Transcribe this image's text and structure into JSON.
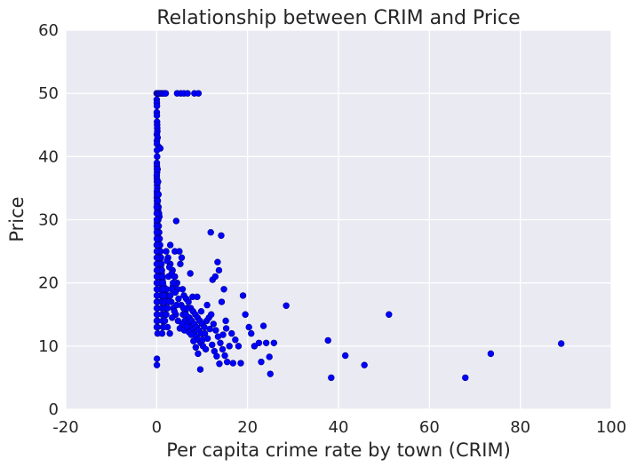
{
  "chart_data": {
    "type": "scatter",
    "title": "Relationship between CRIM and Price",
    "xlabel": "Per capita crime rate by town (CRIM)",
    "ylabel": "Price",
    "xlim": [
      -20,
      100
    ],
    "ylim": [
      0,
      60
    ],
    "xticks": [
      "-20",
      "0",
      "20",
      "40",
      "60",
      "80",
      "100"
    ],
    "yticks": [
      "0",
      "10",
      "20",
      "30",
      "40",
      "50",
      "60"
    ],
    "grid": true,
    "legend": "none",
    "colors": {
      "point": "#0000ff",
      "plot_background": "#eaeaf2",
      "grid": "#ffffff"
    },
    "points": [
      [
        0.01,
        50
      ],
      [
        0.03,
        50
      ],
      [
        0.05,
        50
      ],
      [
        0.1,
        50
      ],
      [
        0.2,
        50
      ],
      [
        0.3,
        50
      ],
      [
        0.5,
        50
      ],
      [
        0.7,
        50
      ],
      [
        1.0,
        50
      ],
      [
        1.3,
        50
      ],
      [
        1.6,
        50
      ],
      [
        2.0,
        50
      ],
      [
        4.5,
        50
      ],
      [
        5.3,
        50
      ],
      [
        6.0,
        50
      ],
      [
        6.8,
        50
      ],
      [
        8.3,
        50
      ],
      [
        9.2,
        50
      ],
      [
        0.02,
        49
      ],
      [
        0.04,
        48.5
      ],
      [
        0.06,
        48
      ],
      [
        0.03,
        47
      ],
      [
        0.05,
        46.5
      ],
      [
        0.08,
        45.5
      ],
      [
        0.1,
        45
      ],
      [
        0.12,
        44.5
      ],
      [
        0.15,
        44
      ],
      [
        0.04,
        43.5
      ],
      [
        0.2,
        43
      ],
      [
        0.05,
        42.5
      ],
      [
        0.06,
        42
      ],
      [
        0.5,
        41.5
      ],
      [
        0.8,
        41.3
      ],
      [
        0.07,
        41
      ],
      [
        0.1,
        40
      ],
      [
        0.04,
        39
      ],
      [
        0.05,
        38.5
      ],
      [
        0.06,
        38
      ],
      [
        0.08,
        37.5
      ],
      [
        0.03,
        37
      ],
      [
        0.05,
        36.5
      ],
      [
        0.07,
        36
      ],
      [
        0.1,
        35.5
      ],
      [
        0.12,
        35
      ],
      [
        0.05,
        34.5
      ],
      [
        0.06,
        34
      ],
      [
        0.04,
        33.5
      ],
      [
        0.08,
        33
      ],
      [
        0.1,
        32.5
      ],
      [
        0.12,
        32
      ],
      [
        0.15,
        31.5
      ],
      [
        0.2,
        31
      ],
      [
        0.3,
        31.5
      ],
      [
        0.4,
        32
      ],
      [
        0.5,
        31
      ],
      [
        0.6,
        30.5
      ],
      [
        0.05,
        30
      ],
      [
        0.08,
        29.5
      ],
      [
        0.1,
        29
      ],
      [
        0.12,
        28.5
      ],
      [
        0.15,
        28
      ],
      [
        0.2,
        27.5
      ],
      [
        0.25,
        27
      ],
      [
        0.3,
        26.5
      ],
      [
        0.35,
        26
      ],
      [
        0.4,
        25.5
      ],
      [
        0.45,
        25
      ],
      [
        0.5,
        24.5
      ],
      [
        0.6,
        24
      ],
      [
        0.7,
        23.5
      ],
      [
        0.8,
        23
      ],
      [
        0.9,
        22.5
      ],
      [
        1.0,
        22
      ],
      [
        1.1,
        21.5
      ],
      [
        1.2,
        21
      ],
      [
        1.3,
        20.5
      ],
      [
        1.4,
        20
      ],
      [
        1.5,
        19.5
      ],
      [
        1.6,
        19
      ],
      [
        1.7,
        18.5
      ],
      [
        1.8,
        18
      ],
      [
        1.9,
        17.5
      ],
      [
        2.0,
        17
      ],
      [
        0.05,
        26
      ],
      [
        0.06,
        25
      ],
      [
        0.07,
        24
      ],
      [
        0.08,
        23
      ],
      [
        0.09,
        22
      ],
      [
        0.1,
        21
      ],
      [
        0.11,
        20
      ],
      [
        0.12,
        19
      ],
      [
        0.13,
        18
      ],
      [
        0.14,
        17
      ],
      [
        0.15,
        16
      ],
      [
        0.16,
        15
      ],
      [
        0.17,
        14
      ],
      [
        0.18,
        13
      ],
      [
        0.2,
        12
      ],
      [
        0.3,
        24
      ],
      [
        0.4,
        23
      ],
      [
        0.5,
        22
      ],
      [
        0.6,
        21
      ],
      [
        0.7,
        20
      ],
      [
        0.8,
        19
      ],
      [
        0.9,
        18
      ],
      [
        1.0,
        17
      ],
      [
        1.1,
        16
      ],
      [
        1.2,
        15
      ],
      [
        1.3,
        14
      ],
      [
        1.4,
        13
      ],
      [
        0.05,
        7
      ],
      [
        0.06,
        8
      ],
      [
        2.5,
        24
      ],
      [
        3.0,
        23
      ],
      [
        3.5,
        22
      ],
      [
        4.0,
        21
      ],
      [
        4.5,
        20
      ],
      [
        2.2,
        19
      ],
      [
        2.7,
        18
      ],
      [
        3.2,
        17
      ],
      [
        3.7,
        16
      ],
      [
        4.2,
        15
      ],
      [
        4.7,
        14
      ],
      [
        2.4,
        13
      ],
      [
        2.9,
        12
      ],
      [
        3.4,
        14.5
      ],
      [
        3.9,
        15.5
      ],
      [
        4.4,
        16.5
      ],
      [
        4.3,
        29.8
      ],
      [
        4.0,
        25
      ],
      [
        5.0,
        25
      ],
      [
        3.0,
        26
      ],
      [
        5.5,
        24
      ],
      [
        5.2,
        23
      ],
      [
        2.6,
        21
      ],
      [
        3.8,
        20
      ],
      [
        4.6,
        19
      ],
      [
        5.7,
        19
      ],
      [
        6.0,
        18
      ],
      [
        6.5,
        17.5
      ],
      [
        7.0,
        17
      ],
      [
        7.5,
        16
      ],
      [
        8.0,
        15.5
      ],
      [
        8.5,
        15
      ],
      [
        9.0,
        14.5
      ],
      [
        9.5,
        14
      ],
      [
        10.0,
        13.5
      ],
      [
        10.5,
        13
      ],
      [
        6.2,
        14
      ],
      [
        6.8,
        13.5
      ],
      [
        7.3,
        13
      ],
      [
        7.8,
        12.5
      ],
      [
        8.2,
        12
      ],
      [
        8.7,
        11.5
      ],
      [
        9.2,
        11
      ],
      [
        9.7,
        10.5
      ],
      [
        10.2,
        10
      ],
      [
        10.8,
        9.5
      ],
      [
        5.8,
        15
      ],
      [
        6.3,
        15.5
      ],
      [
        6.7,
        16
      ],
      [
        7.2,
        14.5
      ],
      [
        7.7,
        14
      ],
      [
        8.3,
        13.5
      ],
      [
        8.8,
        13
      ],
      [
        9.3,
        12.5
      ],
      [
        9.8,
        12
      ],
      [
        11.0,
        14
      ],
      [
        11.5,
        14.5
      ],
      [
        12.0,
        15
      ],
      [
        12.5,
        13.5
      ],
      [
        13.0,
        12.5
      ],
      [
        13.5,
        11.5
      ],
      [
        14.0,
        10.5
      ],
      [
        14.5,
        9.5
      ],
      [
        15.0,
        8.5
      ],
      [
        15.5,
        7.5
      ],
      [
        16.0,
        10
      ],
      [
        7.9,
        17.8
      ],
      [
        8.9,
        17.8
      ],
      [
        7.4,
        21.5
      ],
      [
        9.8,
        15.5
      ],
      [
        11.1,
        16.5
      ],
      [
        12.3,
        20.5
      ],
      [
        12.9,
        21
      ],
      [
        13.4,
        23.3
      ],
      [
        13.7,
        22
      ],
      [
        14.2,
        27.5
      ],
      [
        14.8,
        19
      ],
      [
        14.3,
        17
      ],
      [
        15.2,
        14
      ],
      [
        16.5,
        12
      ],
      [
        17.3,
        11
      ],
      [
        18.0,
        10
      ],
      [
        18.5,
        7.3
      ],
      [
        16.8,
        7.3
      ],
      [
        19.0,
        18
      ],
      [
        19.5,
        15
      ],
      [
        20.3,
        13
      ],
      [
        20.8,
        12
      ],
      [
        21.5,
        10
      ],
      [
        22.5,
        10.5
      ],
      [
        23.0,
        7.5
      ],
      [
        23.5,
        13.2
      ],
      [
        24.1,
        10.5
      ],
      [
        24.8,
        8.3
      ],
      [
        25.0,
        5.6
      ],
      [
        25.8,
        10.5
      ],
      [
        11.9,
        28
      ],
      [
        28.5,
        16.4
      ],
      [
        37.7,
        10.9
      ],
      [
        38.4,
        5
      ],
      [
        41.5,
        8.5
      ],
      [
        45.7,
        7
      ],
      [
        51.1,
        15
      ],
      [
        67.9,
        5
      ],
      [
        73.5,
        8.8
      ],
      [
        89.0,
        10.4
      ],
      [
        0.2,
        38
      ],
      [
        0.3,
        36
      ],
      [
        0.4,
        34
      ],
      [
        0.25,
        33
      ],
      [
        0.35,
        30
      ],
      [
        0.45,
        29
      ],
      [
        0.55,
        28
      ],
      [
        0.65,
        27
      ],
      [
        0.75,
        26
      ],
      [
        0.85,
        25
      ],
      [
        0.95,
        24
      ],
      [
        1.05,
        23
      ],
      [
        1.15,
        22
      ],
      [
        1.25,
        21
      ],
      [
        1.35,
        20
      ],
      [
        1.45,
        19
      ],
      [
        1.55,
        18
      ],
      [
        1.65,
        17
      ],
      [
        1.75,
        16
      ],
      [
        1.85,
        15
      ],
      [
        0.02,
        32
      ],
      [
        0.03,
        31
      ],
      [
        0.04,
        30
      ],
      [
        0.02,
        29
      ],
      [
        0.03,
        28
      ],
      [
        0.04,
        27
      ],
      [
        0.02,
        26
      ],
      [
        0.03,
        25
      ],
      [
        0.04,
        24
      ],
      [
        0.02,
        23
      ],
      [
        0.03,
        22
      ],
      [
        0.04,
        21
      ],
      [
        0.02,
        20
      ],
      [
        0.03,
        19
      ],
      [
        0.04,
        18
      ],
      [
        0.02,
        17
      ],
      [
        0.03,
        16
      ],
      [
        0.04,
        15
      ],
      [
        0.02,
        14
      ],
      [
        0.03,
        13
      ],
      [
        2.1,
        25
      ],
      [
        2.3,
        23.5
      ],
      [
        2.8,
        22.5
      ],
      [
        3.3,
        21.5
      ],
      [
        3.6,
        19.5
      ],
      [
        4.1,
        18.5
      ],
      [
        4.8,
        17.5
      ],
      [
        5.4,
        16.5
      ],
      [
        5.9,
        16
      ],
      [
        6.4,
        15
      ],
      [
        1.2,
        12
      ],
      [
        1.5,
        13
      ],
      [
        1.8,
        14
      ],
      [
        2.1,
        15
      ],
      [
        2.4,
        16
      ],
      [
        2.7,
        17
      ],
      [
        3.0,
        18
      ],
      [
        3.3,
        19
      ],
      [
        3.6,
        20
      ],
      [
        3.9,
        21
      ],
      [
        5.1,
        12.8
      ],
      [
        5.6,
        13.5
      ],
      [
        6.1,
        12.5
      ],
      [
        6.6,
        13.1
      ],
      [
        7.1,
        12.2
      ],
      [
        7.6,
        11.8
      ],
      [
        8.1,
        10.8
      ],
      [
        8.6,
        9.8
      ],
      [
        9.1,
        8.8
      ],
      [
        9.6,
        6.3
      ],
      [
        10.1,
        11
      ],
      [
        10.6,
        12
      ],
      [
        11.2,
        11.2
      ],
      [
        11.7,
        12.7
      ],
      [
        12.2,
        10.2
      ],
      [
        12.7,
        9.2
      ],
      [
        13.2,
        8.4
      ],
      [
        13.8,
        7.2
      ],
      [
        14.6,
        11.8
      ],
      [
        15.3,
        12.8
      ]
    ]
  }
}
